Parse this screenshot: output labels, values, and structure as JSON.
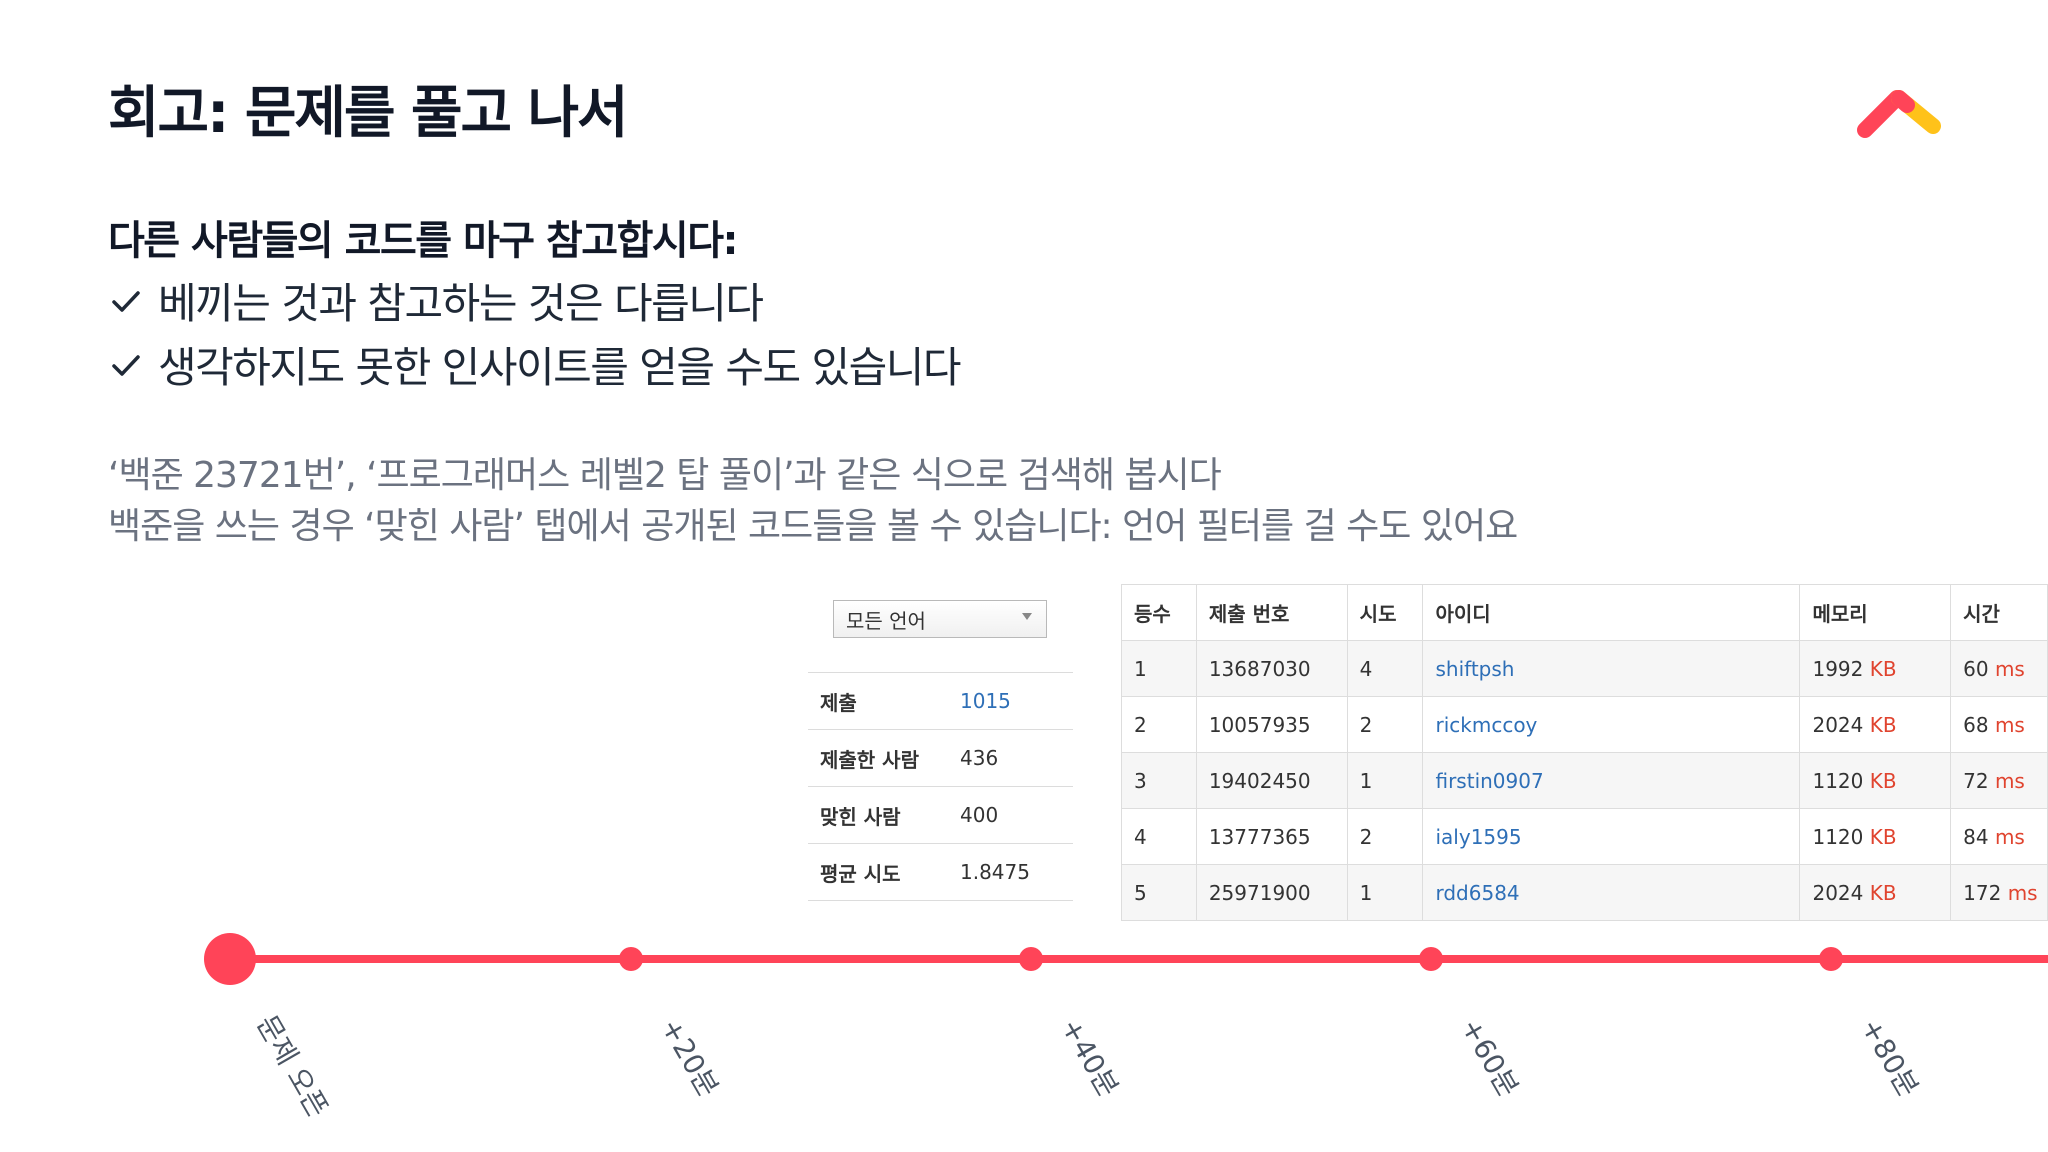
{
  "slide": {
    "title": "회고: 문제를 풀고 나서",
    "heading": "다른 사람들의 코드를 마구 참고합시다:",
    "checks": [
      "베끼는 것과 참고하는 것은 다릅니다",
      "생각하지도 못한 인사이트를 얻을 수도 있습니다"
    ],
    "desc": [
      "‘백준 23721번’, ‘프로그래머스 레벨2 탑 풀이’과 같은 식으로 검색해 봅시다",
      "백준을 쓰는 경우 ‘맞힌 사람’ 탭에서 공개된 코드들을 볼 수 있습니다: 언어 필터를 걸 수도 있어요"
    ],
    "logo_colors": {
      "primary": "#ff4458",
      "secondary": "#ffc21a"
    }
  },
  "language_filter": {
    "selected": "모든 언어"
  },
  "stats": [
    {
      "label": "제출",
      "value": "1015"
    },
    {
      "label": "제출한 사람",
      "value": "436"
    },
    {
      "label": "맞힌 사람",
      "value": "400"
    },
    {
      "label": "평균 시도",
      "value": "1.8475"
    }
  ],
  "submissions": {
    "headers": [
      "등수",
      "제출 번호",
      "시도",
      "아이디",
      "메모리",
      "시간"
    ],
    "rows": [
      {
        "rank": "1",
        "id": "13687030",
        "tries": "4",
        "user": "shiftpsh",
        "mem": "1992",
        "mem_unit": "KB",
        "time": "60",
        "time_unit": "ms"
      },
      {
        "rank": "2",
        "id": "10057935",
        "tries": "2",
        "user": "rickmccoy",
        "mem": "2024",
        "mem_unit": "KB",
        "time": "68",
        "time_unit": "ms"
      },
      {
        "rank": "3",
        "id": "19402450",
        "tries": "1",
        "user": "firstin0907",
        "mem": "1120",
        "mem_unit": "KB",
        "time": "72",
        "time_unit": "ms"
      },
      {
        "rank": "4",
        "id": "13777365",
        "tries": "2",
        "user": "ialy1595",
        "mem": "1120",
        "mem_unit": "KB",
        "time": "84",
        "time_unit": "ms"
      },
      {
        "rank": "5",
        "id": "25971900",
        "tries": "1",
        "user": "rdd6584",
        "mem": "2024",
        "mem_unit": "KB",
        "time": "172",
        "time_unit": "ms"
      }
    ]
  },
  "timeline": {
    "color": "#ff4458",
    "labels": [
      "문제 오픈",
      "+20분",
      "+40분",
      "+60분",
      "+80분"
    ]
  }
}
